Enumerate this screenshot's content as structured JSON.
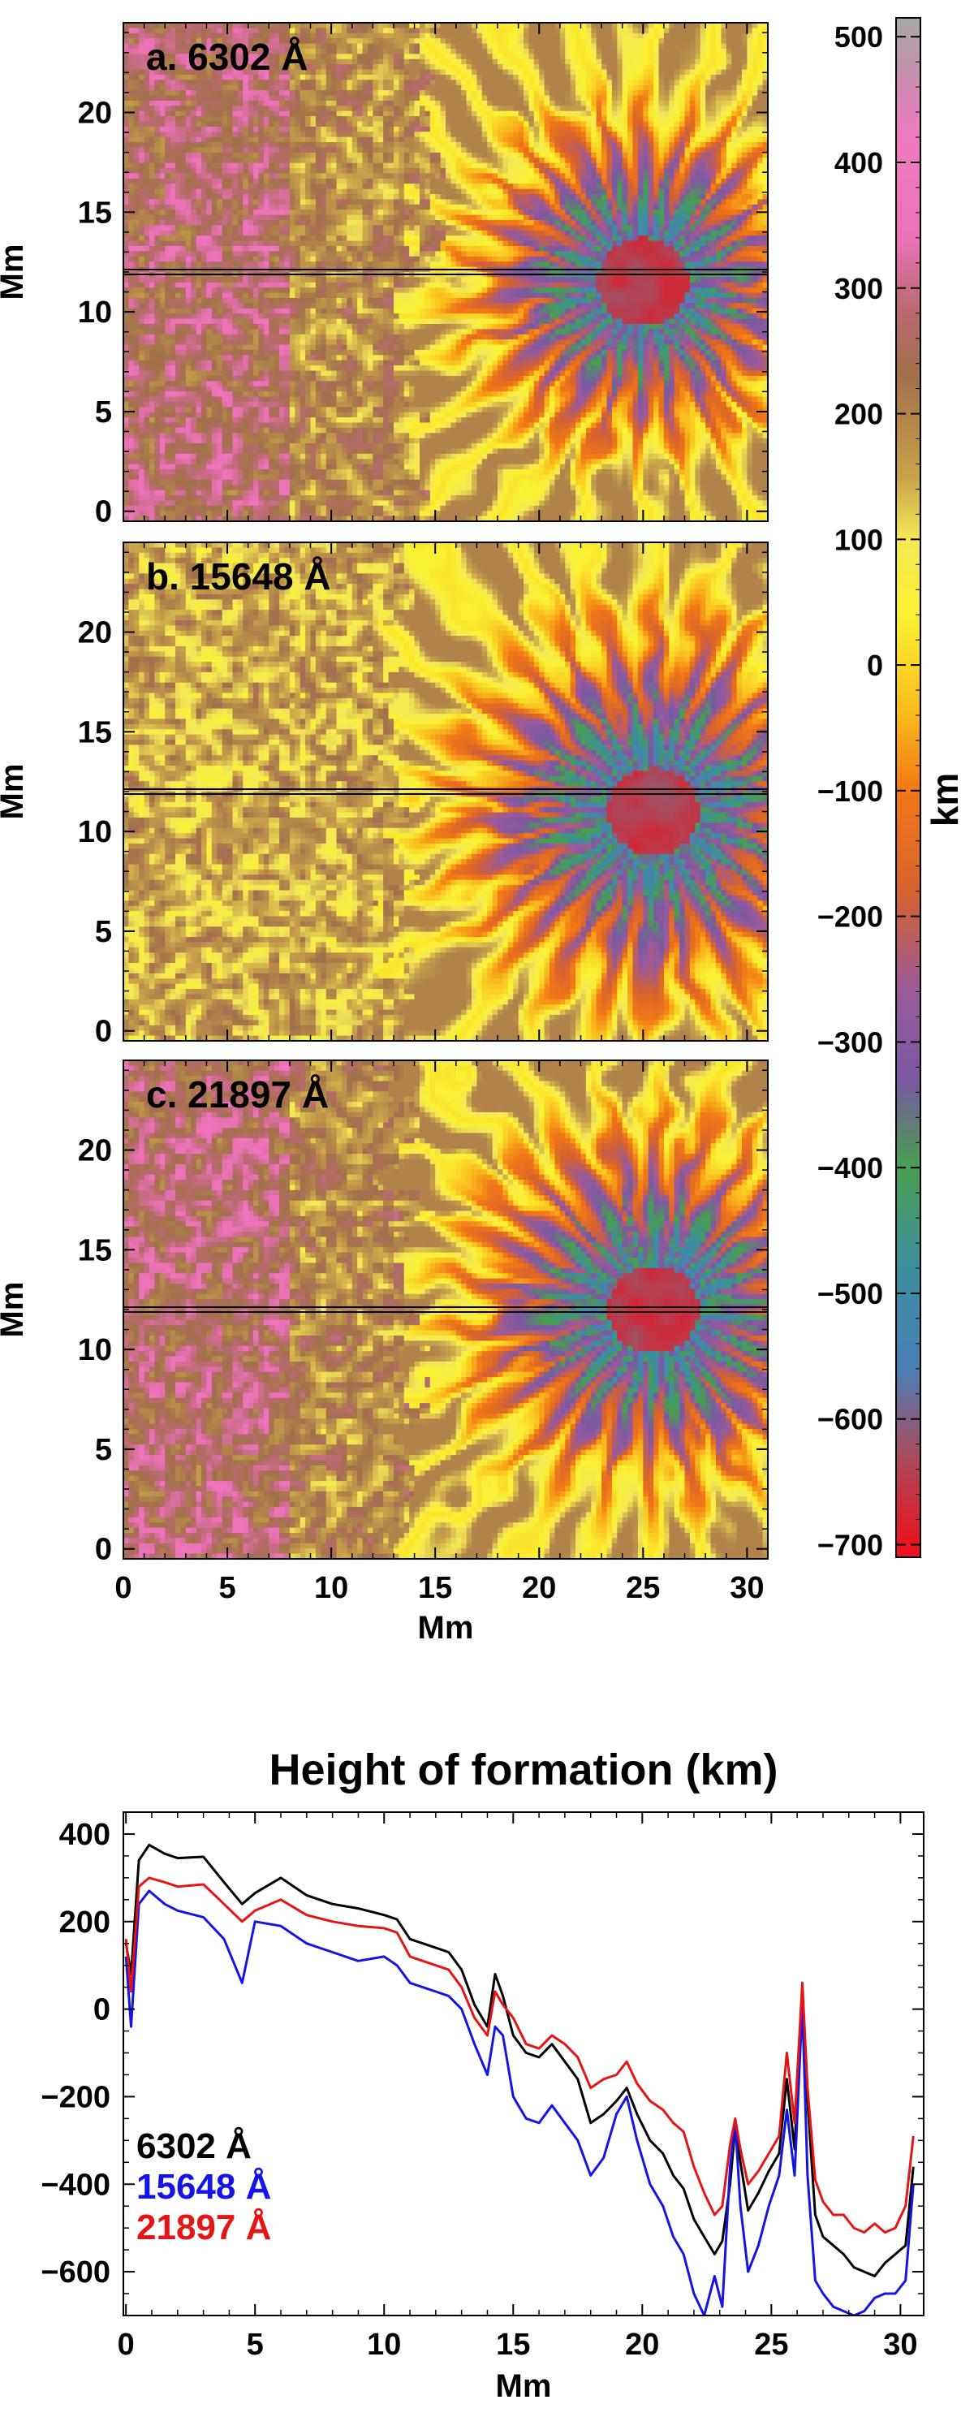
{
  "chart_data": [
    {
      "type": "heatmap",
      "panel_label": "a. 6302 Å",
      "xlabel": "Mm",
      "ylabel": "Mm",
      "xlim": [
        0,
        31
      ],
      "ylim": [
        -0.5,
        24.5
      ],
      "xticks": [
        0,
        5,
        10,
        15,
        20,
        25,
        30
      ],
      "yticks": [
        0,
        5,
        10,
        15,
        20
      ],
      "cut_line_y": 12,
      "colorscale": "height of formation (km)",
      "value_range": [
        -700,
        500
      ],
      "features": {
        "quiet_sun_boundary_x": 14,
        "penumbra_boundary_x": 19,
        "umbra_center": [
          25,
          11.5
        ]
      }
    },
    {
      "type": "heatmap",
      "panel_label": "b. 15648 Å",
      "xlabel": "Mm",
      "ylabel": "Mm",
      "xlim": [
        0,
        31
      ],
      "ylim": [
        -0.5,
        24.5
      ],
      "xticks": [
        0,
        5,
        10,
        15,
        20,
        25,
        30
      ],
      "yticks": [
        0,
        5,
        10,
        15,
        20
      ],
      "cut_line_y": 12,
      "colorscale": "height of formation (km)",
      "value_range": [
        -700,
        500
      ],
      "features": {
        "quiet_sun_boundary_x": 13,
        "penumbra_boundary_x": 18.5,
        "umbra_center": [
          25.5,
          11
        ]
      }
    },
    {
      "type": "heatmap",
      "panel_label": "c. 21897 Å",
      "xlabel": "Mm",
      "ylabel": "Mm",
      "xlim": [
        0,
        31
      ],
      "ylim": [
        -0.5,
        24.5
      ],
      "xticks": [
        0,
        5,
        10,
        15,
        20,
        25,
        30
      ],
      "yticks": [
        0,
        5,
        10,
        15,
        20
      ],
      "cut_line_y": 12,
      "colorscale": "height of formation (km)",
      "value_range": [
        -700,
        500
      ],
      "features": {
        "quiet_sun_boundary_x": 13.5,
        "penumbra_boundary_x": 19.5,
        "umbra_center": [
          25.5,
          12
        ]
      }
    },
    {
      "type": "colorbar",
      "label": "km",
      "range": [
        -710,
        515
      ],
      "ticks": [
        500,
        400,
        300,
        200,
        100,
        0,
        -100,
        -200,
        -300,
        -400,
        -500,
        -600,
        -700
      ],
      "stops": [
        {
          "value": -700,
          "color": "#e8141e"
        },
        {
          "value": -630,
          "color": "#aa4a5e"
        },
        {
          "value": -560,
          "color": "#4b7fb5"
        },
        {
          "value": -480,
          "color": "#3d8fa0"
        },
        {
          "value": -400,
          "color": "#48a050"
        },
        {
          "value": -330,
          "color": "#7a58a2"
        },
        {
          "value": -260,
          "color": "#9a5a9b"
        },
        {
          "value": -180,
          "color": "#d6622e"
        },
        {
          "value": -100,
          "color": "#f27816"
        },
        {
          "value": -40,
          "color": "#f9b91c"
        },
        {
          "value": 40,
          "color": "#fbf232"
        },
        {
          "value": 100,
          "color": "#f4e856"
        },
        {
          "value": 150,
          "color": "#c9a24a"
        },
        {
          "value": 230,
          "color": "#a2704a"
        },
        {
          "value": 280,
          "color": "#b86a6e"
        },
        {
          "value": 340,
          "color": "#ec72b8"
        },
        {
          "value": 420,
          "color": "#f07bc0"
        },
        {
          "value": 470,
          "color": "#c890ae"
        },
        {
          "value": 515,
          "color": "#a8a8a8"
        }
      ]
    },
    {
      "type": "line",
      "title": "Height of formation (km)",
      "xlabel": "Mm",
      "ylabel": "",
      "xlim": [
        -0.1,
        30.9
      ],
      "ylim": [
        -700,
        450
      ],
      "xticks": [
        0,
        5,
        10,
        15,
        20,
        25,
        30
      ],
      "yticks": [
        400,
        200,
        0,
        -200,
        -400,
        -600
      ],
      "x": [
        0,
        0.2,
        0.5,
        0.9,
        1.5,
        2.0,
        3.0,
        3.8,
        4.5,
        5.0,
        6.0,
        7.0,
        8.0,
        9.0,
        10.0,
        10.5,
        11.0,
        11.5,
        12.0,
        12.5,
        13.0,
        13.5,
        14.0,
        14.3,
        14.6,
        15.0,
        15.5,
        16.0,
        16.5,
        17.0,
        17.5,
        18.0,
        18.5,
        19.0,
        19.4,
        19.8,
        20.3,
        20.8,
        21.2,
        21.6,
        22.0,
        22.4,
        22.8,
        23.1,
        23.4,
        23.6,
        23.8,
        24.1,
        24.5,
        24.9,
        25.3,
        25.6,
        25.9,
        26.2,
        26.4,
        26.7,
        27.0,
        27.4,
        27.8,
        28.2,
        28.6,
        29.0,
        29.4,
        29.8,
        30.2,
        30.5
      ],
      "series": [
        {
          "name": "6302 Å",
          "color": "#000000",
          "values": [
            150,
            80,
            340,
            375,
            355,
            345,
            348,
            290,
            240,
            265,
            300,
            260,
            240,
            230,
            215,
            205,
            160,
            150,
            140,
            130,
            90,
            10,
            -40,
            80,
            30,
            -60,
            -100,
            -110,
            -80,
            -120,
            -160,
            -260,
            -240,
            -210,
            -180,
            -240,
            -300,
            -330,
            -380,
            -410,
            -480,
            -520,
            -560,
            -530,
            -400,
            -270,
            -350,
            -460,
            -420,
            -370,
            -330,
            -160,
            -320,
            50,
            -210,
            -470,
            -520,
            -540,
            -560,
            -590,
            -600,
            -610,
            -580,
            -560,
            -540,
            -360
          ]
        },
        {
          "name": "15648 Å",
          "color": "#1414e6",
          "values": [
            120,
            -40,
            240,
            270,
            240,
            225,
            210,
            160,
            60,
            200,
            190,
            150,
            130,
            110,
            120,
            100,
            60,
            50,
            40,
            30,
            0,
            -80,
            -150,
            -40,
            -60,
            -200,
            -250,
            -260,
            -220,
            -260,
            -300,
            -380,
            -340,
            -240,
            -200,
            -300,
            -400,
            -450,
            -520,
            -560,
            -650,
            -700,
            -610,
            -680,
            -360,
            -260,
            -450,
            -600,
            -540,
            -450,
            -380,
            -230,
            -380,
            10,
            -380,
            -620,
            -650,
            -680,
            -690,
            -700,
            -690,
            -660,
            -650,
            -650,
            -620,
            -400
          ]
        },
        {
          "name": "21897 Å",
          "color": "#e61414",
          "values": [
            160,
            40,
            280,
            300,
            290,
            280,
            285,
            240,
            200,
            225,
            250,
            215,
            200,
            190,
            185,
            175,
            120,
            110,
            100,
            90,
            50,
            -20,
            -60,
            40,
            10,
            -20,
            -80,
            -90,
            -60,
            -80,
            -110,
            -180,
            -160,
            -150,
            -120,
            -170,
            -210,
            -230,
            -260,
            -280,
            -360,
            -420,
            -470,
            -450,
            -310,
            -250,
            -320,
            -400,
            -370,
            -330,
            -290,
            -100,
            -260,
            60,
            -180,
            -390,
            -440,
            -470,
            -470,
            -500,
            -510,
            -490,
            -510,
            -500,
            -450,
            -290
          ]
        }
      ],
      "legend": [
        "6302 Å",
        "15648 Å",
        "21897 Å"
      ],
      "legend_position": "bottom-left"
    }
  ]
}
